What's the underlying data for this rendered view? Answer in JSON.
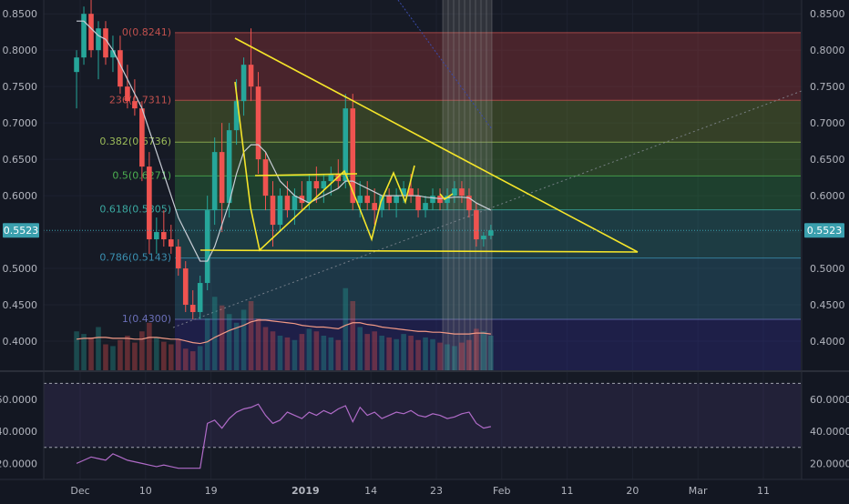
{
  "colors": {
    "background": "#131722",
    "up": "#26a69a",
    "down": "#ef5350",
    "ma": "#c9ced6",
    "trendline": "#f5e52a",
    "price_tag": "#3a9fad",
    "rsi": "#b06bc8",
    "volume_ma": "#f29a86",
    "fib_0": "#a83a3a",
    "fib_236": "#6f8a2a",
    "fib_382": "#4f8d2f",
    "fib_5": "#2f8a3e",
    "fib_618": "#2c7d7a",
    "fib_786": "#2a6f86",
    "fib_1": "#35377f",
    "fib_below": "#2d2a8a"
  },
  "chart_data": [
    {
      "type": "candlestick",
      "title": "",
      "xlabel": "",
      "ylabel": "",
      "x_axis_labels": [
        "Dec",
        "10",
        "19",
        "2019",
        "14",
        "23",
        "Feb",
        "11",
        "20",
        "Mar",
        "11"
      ],
      "x_tick_days": [
        5,
        14,
        23,
        36,
        45,
        54,
        63,
        72,
        81,
        90,
        99
      ],
      "y_ticks": [
        "0.8500",
        "0.8000",
        "0.7500",
        "0.7000",
        "0.6500",
        "0.6000",
        "0.5500",
        "0.5000",
        "0.4500",
        "0.4000"
      ],
      "y_tick_values": [
        0.85,
        0.8,
        0.75,
        0.7,
        0.65,
        0.6,
        0.55,
        0.5,
        0.45,
        0.4
      ],
      "ylim": [
        0.36,
        0.869
      ],
      "current_price": "0.5523",
      "candles": [
        {
          "o": 0.77,
          "h": 0.8,
          "l": 0.72,
          "c": 0.79
        },
        {
          "o": 0.79,
          "h": 0.86,
          "l": 0.78,
          "c": 0.85
        },
        {
          "o": 0.85,
          "h": 0.87,
          "l": 0.79,
          "c": 0.8
        },
        {
          "o": 0.8,
          "h": 0.84,
          "l": 0.76,
          "c": 0.83
        },
        {
          "o": 0.83,
          "h": 0.84,
          "l": 0.78,
          "c": 0.79
        },
        {
          "o": 0.79,
          "h": 0.82,
          "l": 0.77,
          "c": 0.8
        },
        {
          "o": 0.8,
          "h": 0.82,
          "l": 0.74,
          "c": 0.75
        },
        {
          "o": 0.75,
          "h": 0.78,
          "l": 0.72,
          "c": 0.73
        },
        {
          "o": 0.73,
          "h": 0.76,
          "l": 0.71,
          "c": 0.72
        },
        {
          "o": 0.72,
          "h": 0.73,
          "l": 0.62,
          "c": 0.64
        },
        {
          "o": 0.64,
          "h": 0.66,
          "l": 0.52,
          "c": 0.54
        },
        {
          "o": 0.54,
          "h": 0.57,
          "l": 0.52,
          "c": 0.55
        },
        {
          "o": 0.55,
          "h": 0.58,
          "l": 0.53,
          "c": 0.54
        },
        {
          "o": 0.54,
          "h": 0.56,
          "l": 0.52,
          "c": 0.53
        },
        {
          "o": 0.53,
          "h": 0.54,
          "l": 0.49,
          "c": 0.5
        },
        {
          "o": 0.5,
          "h": 0.51,
          "l": 0.44,
          "c": 0.45
        },
        {
          "o": 0.45,
          "h": 0.47,
          "l": 0.43,
          "c": 0.44
        },
        {
          "o": 0.44,
          "h": 0.49,
          "l": 0.43,
          "c": 0.48
        },
        {
          "o": 0.48,
          "h": 0.6,
          "l": 0.47,
          "c": 0.58
        },
        {
          "o": 0.58,
          "h": 0.68,
          "l": 0.56,
          "c": 0.66
        },
        {
          "o": 0.66,
          "h": 0.7,
          "l": 0.55,
          "c": 0.59
        },
        {
          "o": 0.59,
          "h": 0.7,
          "l": 0.57,
          "c": 0.69
        },
        {
          "o": 0.69,
          "h": 0.76,
          "l": 0.67,
          "c": 0.73
        },
        {
          "o": 0.73,
          "h": 0.79,
          "l": 0.71,
          "c": 0.78
        },
        {
          "o": 0.78,
          "h": 0.83,
          "l": 0.73,
          "c": 0.75
        },
        {
          "o": 0.75,
          "h": 0.77,
          "l": 0.63,
          "c": 0.65
        },
        {
          "o": 0.65,
          "h": 0.66,
          "l": 0.58,
          "c": 0.6
        },
        {
          "o": 0.6,
          "h": 0.62,
          "l": 0.53,
          "c": 0.56
        },
        {
          "o": 0.56,
          "h": 0.61,
          "l": 0.55,
          "c": 0.6
        },
        {
          "o": 0.6,
          "h": 0.62,
          "l": 0.57,
          "c": 0.58
        },
        {
          "o": 0.58,
          "h": 0.61,
          "l": 0.56,
          "c": 0.6
        },
        {
          "o": 0.6,
          "h": 0.62,
          "l": 0.58,
          "c": 0.59
        },
        {
          "o": 0.59,
          "h": 0.63,
          "l": 0.58,
          "c": 0.62
        },
        {
          "o": 0.62,
          "h": 0.64,
          "l": 0.59,
          "c": 0.61
        },
        {
          "o": 0.61,
          "h": 0.63,
          "l": 0.59,
          "c": 0.62
        },
        {
          "o": 0.62,
          "h": 0.64,
          "l": 0.6,
          "c": 0.63
        },
        {
          "o": 0.63,
          "h": 0.65,
          "l": 0.61,
          "c": 0.62
        },
        {
          "o": 0.62,
          "h": 0.74,
          "l": 0.61,
          "c": 0.72
        },
        {
          "o": 0.72,
          "h": 0.74,
          "l": 0.58,
          "c": 0.59
        },
        {
          "o": 0.59,
          "h": 0.62,
          "l": 0.57,
          "c": 0.6
        },
        {
          "o": 0.6,
          "h": 0.62,
          "l": 0.58,
          "c": 0.59
        },
        {
          "o": 0.59,
          "h": 0.61,
          "l": 0.56,
          "c": 0.58
        },
        {
          "o": 0.58,
          "h": 0.6,
          "l": 0.57,
          "c": 0.6
        },
        {
          "o": 0.6,
          "h": 0.61,
          "l": 0.58,
          "c": 0.59
        },
        {
          "o": 0.59,
          "h": 0.61,
          "l": 0.57,
          "c": 0.6
        },
        {
          "o": 0.6,
          "h": 0.62,
          "l": 0.59,
          "c": 0.61
        },
        {
          "o": 0.61,
          "h": 0.63,
          "l": 0.59,
          "c": 0.6
        },
        {
          "o": 0.6,
          "h": 0.61,
          "l": 0.57,
          "c": 0.58
        },
        {
          "o": 0.58,
          "h": 0.6,
          "l": 0.57,
          "c": 0.59
        },
        {
          "o": 0.59,
          "h": 0.61,
          "l": 0.58,
          "c": 0.6
        },
        {
          "o": 0.6,
          "h": 0.61,
          "l": 0.58,
          "c": 0.59
        },
        {
          "o": 0.59,
          "h": 0.61,
          "l": 0.58,
          "c": 0.6
        },
        {
          "o": 0.6,
          "h": 0.62,
          "l": 0.59,
          "c": 0.61
        },
        {
          "o": 0.61,
          "h": 0.62,
          "l": 0.59,
          "c": 0.6
        },
        {
          "o": 0.6,
          "h": 0.61,
          "l": 0.57,
          "c": 0.58
        },
        {
          "o": 0.58,
          "h": 0.59,
          "l": 0.53,
          "c": 0.54
        },
        {
          "o": 0.54,
          "h": 0.55,
          "l": 0.53,
          "c": 0.545
        },
        {
          "o": 0.545,
          "h": 0.56,
          "l": 0.54,
          "c": 0.5523
        }
      ],
      "ma_values": [
        0.84,
        0.84,
        0.83,
        0.82,
        0.815,
        0.8,
        0.78,
        0.76,
        0.74,
        0.72,
        0.69,
        0.66,
        0.63,
        0.6,
        0.57,
        0.55,
        0.53,
        0.51,
        0.51,
        0.53,
        0.56,
        0.59,
        0.63,
        0.66,
        0.67,
        0.67,
        0.66,
        0.64,
        0.62,
        0.61,
        0.6,
        0.595,
        0.59,
        0.595,
        0.6,
        0.605,
        0.61,
        0.62,
        0.62,
        0.615,
        0.61,
        0.605,
        0.6,
        0.6,
        0.6,
        0.6,
        0.6,
        0.6,
        0.598,
        0.597,
        0.596,
        0.597,
        0.598,
        0.598,
        0.597,
        0.59,
        0.585,
        0.58
      ],
      "volume": [
        0.45,
        0.42,
        0.38,
        0.5,
        0.3,
        0.28,
        0.35,
        0.4,
        0.32,
        0.45,
        0.55,
        0.38,
        0.33,
        0.3,
        0.36,
        0.25,
        0.22,
        0.28,
        0.6,
        0.85,
        0.75,
        0.65,
        0.55,
        0.7,
        0.8,
        0.6,
        0.5,
        0.45,
        0.4,
        0.38,
        0.35,
        0.42,
        0.48,
        0.45,
        0.4,
        0.38,
        0.35,
        0.95,
        0.8,
        0.5,
        0.42,
        0.45,
        0.4,
        0.38,
        0.36,
        0.42,
        0.4,
        0.35,
        0.38,
        0.36,
        0.32,
        0.3,
        0.28,
        0.32,
        0.35,
        0.48,
        0.45,
        0.4
      ],
      "volume_ma": [
        0.36,
        0.37,
        0.37,
        0.38,
        0.38,
        0.37,
        0.37,
        0.37,
        0.36,
        0.36,
        0.38,
        0.38,
        0.37,
        0.36,
        0.36,
        0.34,
        0.32,
        0.31,
        0.33,
        0.38,
        0.42,
        0.46,
        0.49,
        0.52,
        0.56,
        0.58,
        0.58,
        0.57,
        0.56,
        0.55,
        0.54,
        0.52,
        0.51,
        0.5,
        0.5,
        0.49,
        0.48,
        0.52,
        0.55,
        0.55,
        0.53,
        0.52,
        0.5,
        0.49,
        0.48,
        0.47,
        0.46,
        0.45,
        0.45,
        0.44,
        0.44,
        0.43,
        0.42,
        0.42,
        0.42,
        0.43,
        0.43,
        0.42
      ]
    },
    {
      "type": "fibonacci_retracement",
      "levels": [
        {
          "label": "0(0.8241)",
          "value": 0.8241
        },
        {
          "label": "236(0.7311)",
          "value": 0.7311
        },
        {
          "label": "0.382(0.6736)",
          "value": 0.6736
        },
        {
          "label": "0.5(0.6271)",
          "value": 0.6271
        },
        {
          "label": "0.618(0.5805)",
          "value": 0.5805
        },
        {
          "label": "0.786(0.5143)",
          "value": 0.5143
        },
        {
          "label": "1(0.4300)",
          "value": 0.43
        }
      ]
    },
    {
      "type": "line",
      "y_ticks": [
        "60.0000",
        "40.0000",
        "20.0000"
      ],
      "y_tick_values": [
        60,
        40,
        20
      ],
      "ylim": [
        10,
        77
      ],
      "overbought": 70,
      "oversold": 30,
      "values": [
        20,
        22,
        24,
        23,
        22,
        26,
        24,
        22,
        21,
        20,
        19,
        18,
        19,
        18,
        17,
        17,
        17,
        17,
        45,
        47,
        42,
        48,
        52,
        54,
        55,
        57,
        50,
        45,
        47,
        52,
        50,
        48,
        52,
        50,
        53,
        51,
        54,
        56,
        46,
        55,
        50,
        52,
        48,
        50,
        52,
        51,
        53,
        50,
        49,
        51,
        50,
        48,
        49,
        51,
        52,
        45,
        42,
        43
      ]
    }
  ]
}
